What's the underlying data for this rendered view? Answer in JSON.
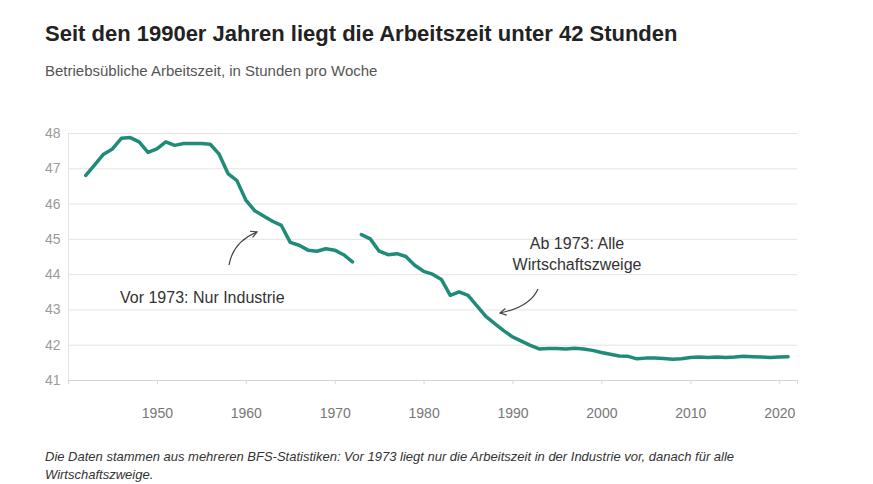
{
  "chart_data": {
    "type": "line",
    "title": "Seit den 1990er Jahren liegt die Arbeitszeit unter 42 Stunden",
    "subtitle": "Betriebsübliche Arbeitszeit, in Stunden pro Woche",
    "note": "Die Daten stammen aus mehreren BFS-Statistiken: Vor 1973 liegt nur die Arbeitszeit in der Industrie vor, danach für alle Wirtschaftszweige.",
    "x": [
      1942,
      1943,
      1944,
      1945,
      1946,
      1947,
      1948,
      1949,
      1950,
      1951,
      1952,
      1953,
      1954,
      1955,
      1956,
      1957,
      1958,
      1959,
      1960,
      1961,
      1962,
      1963,
      1964,
      1965,
      1966,
      1967,
      1968,
      1969,
      1970,
      1971,
      1972,
      1973,
      1974,
      1975,
      1976,
      1977,
      1978,
      1979,
      1980,
      1981,
      1982,
      1983,
      1984,
      1985,
      1986,
      1987,
      1988,
      1989,
      1990,
      1991,
      1992,
      1993,
      1994,
      1995,
      1996,
      1997,
      1998,
      1999,
      2000,
      2001,
      2002,
      2003,
      2004,
      2005,
      2006,
      2007,
      2008,
      2009,
      2010,
      2011,
      2012,
      2013,
      2014,
      2015,
      2016,
      2017,
      2018,
      2019,
      2020,
      2021
    ],
    "series": [
      {
        "name": "Vor 1973: Nur Industrie",
        "color": "#1f8b78",
        "values": [
          46.8,
          47.1,
          47.4,
          47.55,
          47.85,
          47.87,
          47.75,
          47.45,
          47.55,
          47.75,
          47.65,
          47.7,
          47.7,
          47.7,
          47.68,
          47.4,
          46.85,
          46.65,
          46.1,
          45.8,
          45.65,
          45.5,
          45.38,
          44.9,
          44.82,
          44.68,
          44.65,
          44.72,
          44.68,
          44.55,
          44.35,
          null,
          null,
          null,
          null,
          null,
          null,
          null,
          null,
          null,
          null,
          null,
          null,
          null,
          null,
          null,
          null,
          null,
          null,
          null,
          null,
          null,
          null,
          null,
          null,
          null,
          null,
          null,
          null,
          null,
          null,
          null,
          null,
          null,
          null,
          null,
          null,
          null,
          null,
          null,
          null,
          null,
          null,
          null,
          null,
          null,
          null,
          null,
          null,
          null
        ]
      },
      {
        "name": "Ab 1973: Alle Wirtschaftszweige",
        "color": "#1f8b78",
        "values": [
          null,
          null,
          null,
          null,
          null,
          null,
          null,
          null,
          null,
          null,
          null,
          null,
          null,
          null,
          null,
          null,
          null,
          null,
          null,
          null,
          null,
          null,
          null,
          null,
          null,
          null,
          null,
          null,
          null,
          null,
          null,
          45.12,
          45.0,
          44.65,
          44.55,
          44.58,
          44.5,
          44.25,
          44.08,
          44.0,
          43.85,
          43.4,
          43.5,
          43.4,
          43.1,
          42.8,
          42.6,
          42.4,
          42.22,
          42.1,
          41.98,
          41.88,
          41.89,
          41.89,
          41.88,
          41.9,
          41.88,
          41.84,
          41.78,
          41.73,
          41.68,
          41.67,
          41.6,
          41.62,
          41.62,
          41.61,
          41.59,
          41.6,
          41.64,
          41.65,
          41.64,
          41.65,
          41.64,
          41.65,
          41.67,
          41.66,
          41.65,
          41.64,
          41.65,
          41.66
        ]
      }
    ],
    "xlim": [
      1940,
      2022
    ],
    "xticks": [
      1950,
      1960,
      1970,
      1980,
      1990,
      2000,
      2010,
      2020
    ],
    "ylim": [
      41,
      48
    ],
    "yticks": [
      41,
      42,
      43,
      44,
      45,
      46,
      47,
      48
    ],
    "grid": true
  }
}
